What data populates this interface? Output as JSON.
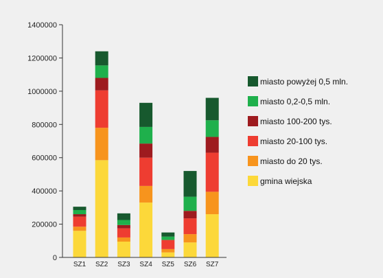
{
  "chart_data": {
    "type": "bar",
    "stacked": true,
    "categories": [
      "SZ1",
      "SZ2",
      "SZ3",
      "SZ4",
      "SZ5",
      "SZ6",
      "SZ7"
    ],
    "ylim": [
      0,
      1400000
    ],
    "yticks": [
      "0",
      "200000",
      "400000",
      "600000",
      "800000",
      "1000000",
      "1200000",
      "1400000"
    ],
    "grid": false,
    "legend_position": "right",
    "series": [
      {
        "name": "gmina wiejska",
        "color": "#fcd83a",
        "values": [
          160000,
          585000,
          95000,
          330000,
          30000,
          90000,
          260000
        ]
      },
      {
        "name": "miasto do 20 tys.",
        "color": "#f7941d",
        "values": [
          25000,
          195000,
          25000,
          100000,
          20000,
          50000,
          135000
        ]
      },
      {
        "name": "miasto 20-100 tys.",
        "color": "#ee3d31",
        "values": [
          60000,
          225000,
          55000,
          170000,
          55000,
          95000,
          235000
        ]
      },
      {
        "name": "miasto 100-200 tys.",
        "color": "#9e1b1f",
        "values": [
          15000,
          75000,
          20000,
          85000,
          0,
          45000,
          95000
        ]
      },
      {
        "name": "miasto 0,2-0,5 mln.",
        "color": "#1fb04c",
        "values": [
          25000,
          75000,
          30000,
          100000,
          20000,
          85000,
          100000
        ]
      },
      {
        "name": "miasto powyżej 0,5 mln.",
        "color": "#17592e",
        "values": [
          20000,
          85000,
          40000,
          145000,
          25000,
          155000,
          135000
        ]
      }
    ]
  }
}
